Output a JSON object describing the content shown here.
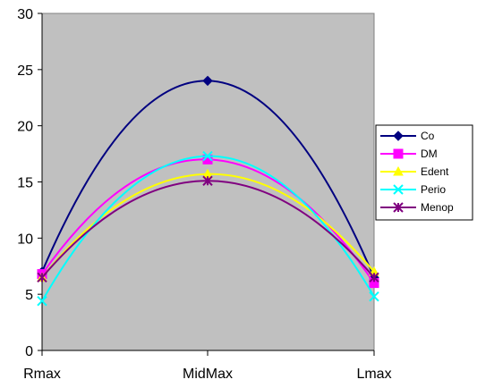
{
  "chart_data": {
    "type": "line",
    "categories": [
      "Rmax",
      "MidMax",
      "Lmax"
    ],
    "ylim": [
      0,
      30
    ],
    "yticks": [
      0,
      5,
      10,
      15,
      20,
      25,
      30
    ],
    "grid": false,
    "plot_background": "#C0C0C0",
    "smooth": true,
    "legend_position": "right",
    "series": [
      {
        "name": "Co",
        "values": [
          7.0,
          24.0,
          6.5
        ],
        "color": "#000080",
        "marker": "diamond"
      },
      {
        "name": "DM",
        "values": [
          6.8,
          17.0,
          6.0
        ],
        "color": "#FF00FF",
        "marker": "square"
      },
      {
        "name": "Edent",
        "values": [
          6.5,
          15.7,
          7.0
        ],
        "color": "#FFFF00",
        "marker": "triangle"
      },
      {
        "name": "Perio",
        "values": [
          4.4,
          17.3,
          4.8
        ],
        "color": "#00FFFF",
        "marker": "x"
      },
      {
        "name": "Menop",
        "values": [
          6.5,
          15.1,
          6.5
        ],
        "color": "#800080",
        "marker": "star"
      }
    ]
  }
}
